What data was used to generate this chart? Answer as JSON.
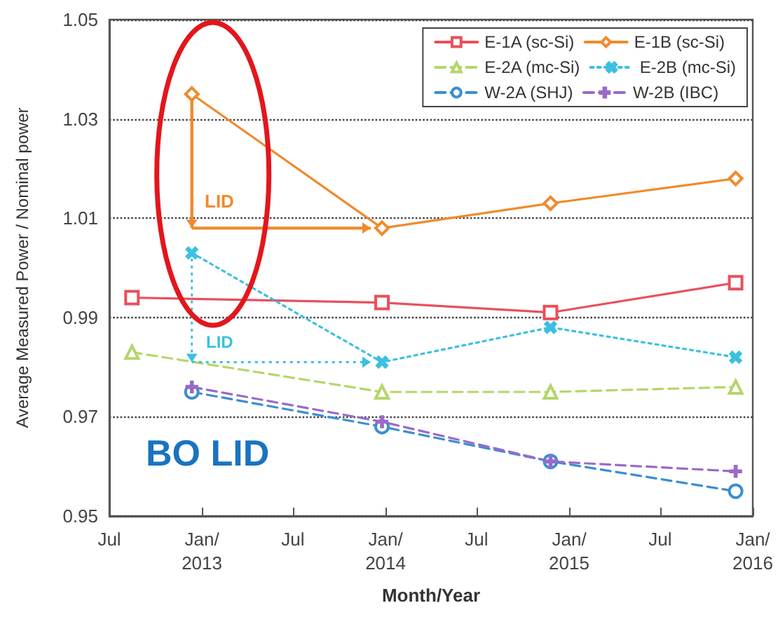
{
  "chart_data": {
    "type": "line",
    "xlabel": "Month/Year",
    "ylabel": "Average Measured Power / Nominal power",
    "xlim": [
      "2012-07-01",
      "2016-01-01"
    ],
    "xticks": [
      {
        "value": "2012-07-01",
        "label": "Jul"
      },
      {
        "value": "2013-01-01",
        "label": "Jan/\n2013"
      },
      {
        "value": "2013-07-01",
        "label": "Jul"
      },
      {
        "value": "2014-01-01",
        "label": "Jan/\n2014"
      },
      {
        "value": "2014-07-01",
        "label": "Jul"
      },
      {
        "value": "2015-01-01",
        "label": "Jan/\n2015"
      },
      {
        "value": "2015-07-01",
        "label": "Jul"
      },
      {
        "value": "2016-01-01",
        "label": "Jan/\n2016"
      }
    ],
    "ylim": [
      0.95,
      1.05
    ],
    "yticks": [
      0.95,
      0.97,
      0.99,
      1.01,
      1.03,
      1.05
    ],
    "grid": "y",
    "legend": "top right",
    "series": [
      {
        "name": "E-1A (sc-Si)",
        "color": "#e8505b",
        "marker": "square",
        "line_style": "solid",
        "x": [
          "2012-08-15",
          "2013-12-25",
          "2014-11-25",
          "2015-11-28"
        ],
        "values": [
          0.994,
          0.993,
          0.991,
          0.997
        ]
      },
      {
        "name": "E-1B (sc-Si)",
        "color": "#f08a2c",
        "marker": "diamond",
        "line_style": "solid",
        "x": [
          "2012-12-12",
          "2013-12-25",
          "2014-11-25",
          "2015-11-28"
        ],
        "values": [
          1.035,
          1.008,
          1.013,
          1.018
        ]
      },
      {
        "name": "E-2A (mc-Si)",
        "color": "#b5d66a",
        "marker": "triangle",
        "line_style": "dashed",
        "x": [
          "2012-08-15",
          "2013-12-25",
          "2014-11-25",
          "2015-11-28"
        ],
        "values": [
          0.983,
          0.975,
          0.975,
          0.976
        ]
      },
      {
        "name": "E-2B (mc-Si)",
        "color": "#3cc0e0",
        "marker": "cross",
        "line_style": "dotted",
        "x": [
          "2012-12-12",
          "2013-12-25",
          "2014-11-25",
          "2015-11-28"
        ],
        "values": [
          1.003,
          0.981,
          0.988,
          0.982
        ]
      },
      {
        "name": "W-2A (SHJ)",
        "color": "#3a8fd0",
        "marker": "circle",
        "line_style": "dashed",
        "x": [
          "2012-12-12",
          "2013-12-25",
          "2014-11-25",
          "2015-11-28"
        ],
        "values": [
          0.975,
          0.968,
          0.961,
          0.955
        ]
      },
      {
        "name": "W-2B (IBC)",
        "color": "#9a6ac8",
        "marker": "cross",
        "line_style": "dashed",
        "x": [
          "2012-12-12",
          "2013-12-25",
          "2014-11-25",
          "2015-11-28"
        ],
        "values": [
          0.976,
          0.969,
          0.961,
          0.959
        ]
      }
    ],
    "annotations": [
      {
        "text": "LID",
        "x": "2013-12-25",
        "y": 1.008
      },
      {
        "text": "LID",
        "x": "2013-12-25",
        "y": 0.981
      },
      "BO LID"
    ]
  }
}
